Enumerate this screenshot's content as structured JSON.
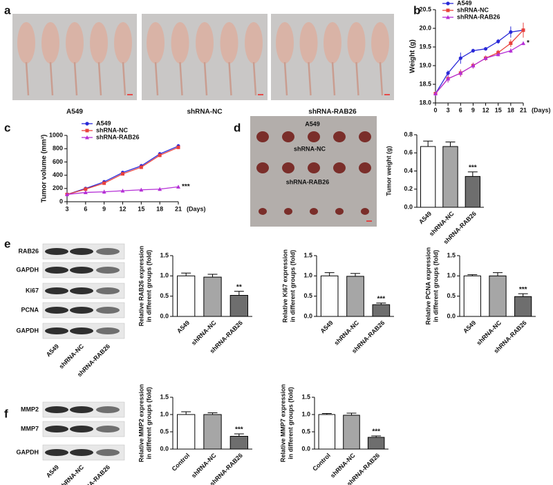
{
  "figure": {
    "panel_letters": [
      "a",
      "b",
      "c",
      "d",
      "e",
      "f"
    ]
  },
  "mouse_photo": {
    "groups": [
      "A549",
      "shRNA-NC",
      "shRNA-RAB26"
    ]
  },
  "tumor_photo": {
    "groups": [
      "A549",
      "shRNA-NC",
      "shRNA-RAB26"
    ]
  },
  "blot_e": {
    "rows": [
      "RAB26",
      "GAPDH",
      "Ki67",
      "PCNA",
      "GAPDH"
    ],
    "lanes": [
      "A549",
      "shRNA-NC",
      "shRNA-RAB26"
    ]
  },
  "blot_f": {
    "rows": [
      "MMP2",
      "MMP7",
      "GAPDH"
    ],
    "lanes": [
      "A549",
      "shRNA-NC",
      "shRNA-RAB26"
    ]
  },
  "chart_data": [
    {
      "type": "line",
      "ylabel": "Weight (g)",
      "xlabel": "(Days)",
      "annotation": "*",
      "legend": "upper left",
      "x": [
        0,
        3,
        6,
        9,
        12,
        15,
        18,
        21
      ],
      "xlim": [
        0,
        21
      ],
      "xticks": [
        0,
        3,
        6,
        9,
        12,
        15,
        18,
        21
      ],
      "ylim": [
        18,
        20.5
      ],
      "yticks": [
        {
          "value": 18,
          "label": "18.0"
        },
        18.5,
        {
          "value": 19,
          "label": "19.0"
        },
        19.5,
        {
          "value": 20,
          "label": "20.0"
        },
        20.5
      ],
      "series": [
        {
          "name": "A549",
          "color": "#2a2ad8",
          "marker": "circle",
          "values": [
            18.25,
            18.8,
            19.2,
            19.4,
            19.45,
            19.65,
            19.9,
            19.95
          ],
          "errors": [
            0.05,
            0.07,
            0.15,
            0.05,
            0.03,
            0.06,
            0.15,
            0.2
          ]
        },
        {
          "name": "shRNA-NC",
          "color": "#e8413c",
          "marker": "square",
          "values": [
            18.25,
            18.65,
            18.8,
            19.0,
            19.2,
            19.35,
            19.6,
            19.95
          ],
          "errors": [
            0.05,
            0.1,
            0.1,
            0.08,
            0.07,
            0.07,
            0.1,
            0.2
          ]
        },
        {
          "name": "shRNA-RAB26",
          "color": "#b52fd6",
          "marker": "triangle",
          "values": [
            18.25,
            18.65,
            18.8,
            19.0,
            19.2,
            19.3,
            19.4,
            19.6
          ],
          "errors": [
            0.05,
            0.1,
            0.08,
            0.07,
            0.05,
            0.05,
            0.06,
            0.05
          ]
        }
      ]
    },
    {
      "type": "line",
      "ylabel": "Tumor volume (mm³)",
      "xlabel": "(Days)",
      "annotation": "***",
      "legend": "upper left",
      "x": [
        3,
        6,
        9,
        12,
        15,
        18,
        21
      ],
      "xlim": [
        3,
        21
      ],
      "xticks": [
        3,
        6,
        9,
        12,
        15,
        18,
        21
      ],
      "ylim": [
        0,
        1000
      ],
      "yticks": [
        0,
        200,
        400,
        600,
        800,
        1000
      ],
      "series": [
        {
          "name": "A549",
          "color": "#2a2ad8",
          "marker": "circle",
          "values": [
            110,
            200,
            300,
            440,
            540,
            720,
            840
          ],
          "errors": [
            8,
            15,
            25,
            25,
            30,
            30,
            30
          ]
        },
        {
          "name": "shRNA-NC",
          "color": "#e8413c",
          "marker": "square",
          "values": [
            110,
            190,
            280,
            420,
            520,
            700,
            820
          ],
          "errors": [
            8,
            12,
            20,
            20,
            25,
            25,
            25
          ]
        },
        {
          "name": "shRNA-RAB26",
          "color": "#b52fd6",
          "marker": "triangle",
          "values": [
            110,
            140,
            150,
            165,
            180,
            190,
            225
          ],
          "errors": [
            8,
            25,
            30,
            25,
            25,
            25,
            25
          ]
        }
      ]
    },
    {
      "type": "bar",
      "ylabel": [
        "Tumor weight (g)"
      ],
      "categories": [
        "A549",
        "shRNA-NC",
        "shRNA-RAB26"
      ],
      "values": [
        0.67,
        0.67,
        0.34
      ],
      "errors": [
        0.06,
        0.05,
        0.05
      ],
      "colors": [
        "#ffffff",
        "#a6a6a6",
        "#6e6e6e"
      ],
      "ylim": [
        0,
        0.8
      ],
      "yticks": [
        {
          "value": 0,
          "label": "0.0"
        },
        0.2,
        0.4,
        0.6,
        0.8
      ],
      "annotation": "***",
      "annotation_at": "shRNA-RAB26"
    },
    {
      "type": "bar",
      "ylabel": [
        "Relative RAB26 expression",
        "in different groups (fold)"
      ],
      "categories": [
        "A549",
        "shRNA-NC",
        "shRNA-RAB26"
      ],
      "values": [
        1.0,
        0.97,
        0.52
      ],
      "errors": [
        0.07,
        0.07,
        0.1
      ],
      "colors": [
        "#ffffff",
        "#a6a6a6",
        "#6e6e6e"
      ],
      "ylim": [
        0,
        1.5
      ],
      "yticks": [
        {
          "value": 0,
          "label": "0.0"
        },
        0.5,
        {
          "value": 1,
          "label": "1.0"
        },
        1.5
      ],
      "annotation": "**",
      "annotation_at": "shRNA-RAB26"
    },
    {
      "type": "bar",
      "ylabel": [
        "Relative Ki67 expression",
        "in different groups (fold)"
      ],
      "categories": [
        "A549",
        "shRNA-NC",
        "shRNA-RAB26"
      ],
      "values": [
        1.0,
        0.99,
        0.29
      ],
      "errors": [
        0.08,
        0.07,
        0.04
      ],
      "colors": [
        "#ffffff",
        "#a6a6a6",
        "#6e6e6e"
      ],
      "ylim": [
        0,
        1.5
      ],
      "yticks": [
        {
          "value": 0,
          "label": "0.0"
        },
        0.5,
        {
          "value": 1,
          "label": "1.0"
        },
        1.5
      ],
      "annotation": "***",
      "annotation_at": "shRNA-RAB26"
    },
    {
      "type": "bar",
      "ylabel": [
        "Relative PCNA expression",
        "in different groups (fold)"
      ],
      "categories": [
        "A549",
        "shRNA-NC",
        "shRNA-RAB26"
      ],
      "values": [
        1.0,
        1.0,
        0.49
      ],
      "errors": [
        0.03,
        0.08,
        0.07
      ],
      "colors": [
        "#ffffff",
        "#a6a6a6",
        "#6e6e6e"
      ],
      "ylim": [
        0,
        1.5
      ],
      "yticks": [
        {
          "value": 0,
          "label": "0.0"
        },
        0.5,
        {
          "value": 1,
          "label": "1.0"
        },
        1.5
      ],
      "annotation": "***",
      "annotation_at": "shRNA-RAB26"
    },
    {
      "type": "bar",
      "ylabel": [
        "Relative MMP2 expression",
        "in different groups (fold)"
      ],
      "categories": [
        "Control",
        "shRNA-NC",
        "shRNA-RAB26"
      ],
      "values": [
        1.0,
        1.0,
        0.37
      ],
      "errors": [
        0.08,
        0.05,
        0.07
      ],
      "colors": [
        "#ffffff",
        "#a6a6a6",
        "#6e6e6e"
      ],
      "ylim": [
        0,
        1.5
      ],
      "yticks": [
        {
          "value": 0,
          "label": "0.0"
        },
        0.5,
        {
          "value": 1,
          "label": "1.0"
        },
        1.5
      ],
      "annotation": "***",
      "annotation_at": "shRNA-RAB26"
    },
    {
      "type": "bar",
      "ylabel": [
        "Relative MMP7 expression",
        "in different groups (fold)"
      ],
      "categories": [
        "Control",
        "shRNA-NC",
        "shRNA-RAB26"
      ],
      "values": [
        1.0,
        0.98,
        0.34
      ],
      "errors": [
        0.03,
        0.06,
        0.04
      ],
      "colors": [
        "#ffffff",
        "#a6a6a6",
        "#6e6e6e"
      ],
      "ylim": [
        0,
        1.5
      ],
      "yticks": [
        {
          "value": 0,
          "label": "0.0"
        },
        0.5,
        {
          "value": 1,
          "label": "1.0"
        },
        1.5
      ],
      "annotation": "***",
      "annotation_at": "shRNA-RAB26"
    }
  ]
}
